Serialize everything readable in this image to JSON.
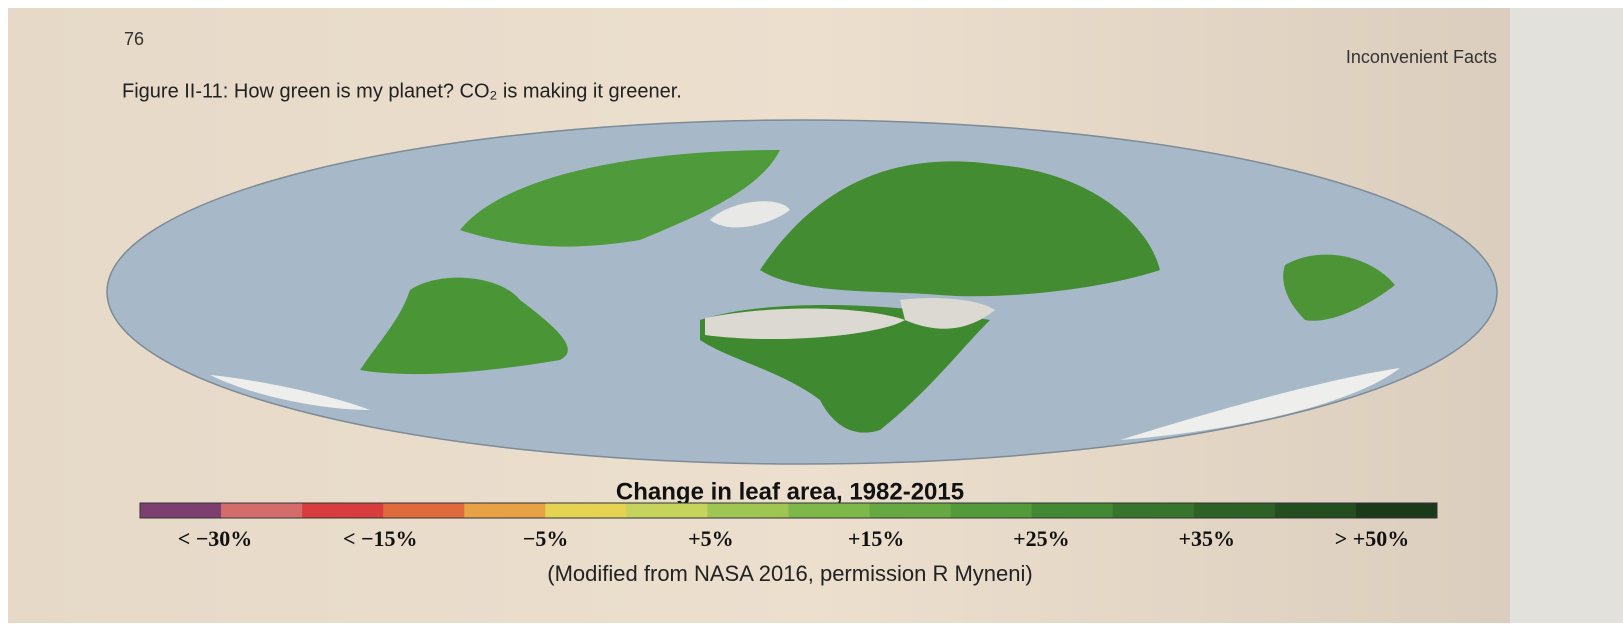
{
  "page": {
    "page_number": "76",
    "running_header": "Inconvenient Facts",
    "caption": "Figure II-11: How green is my planet? CO₂ is making it greener.",
    "legend": {
      "title": "Change in leaf area, 1982-2015",
      "colors": [
        "#7d3f70",
        "#d46c6c",
        "#d83c3c",
        "#de6a3e",
        "#e6a244",
        "#e4d452",
        "#c6d35c",
        "#9fc652",
        "#7fb84a",
        "#66a942",
        "#539a3a",
        "#438833",
        "#37752c",
        "#2d6126",
        "#244e20",
        "#1b3a1a"
      ],
      "labels": [
        "< −30%",
        "< −15%",
        "−5%",
        "+5%",
        "+15%",
        "+25%",
        "+35%",
        "> +50%"
      ]
    },
    "credit": "(Modified from NASA 2016, permission R Myneni)"
  }
}
